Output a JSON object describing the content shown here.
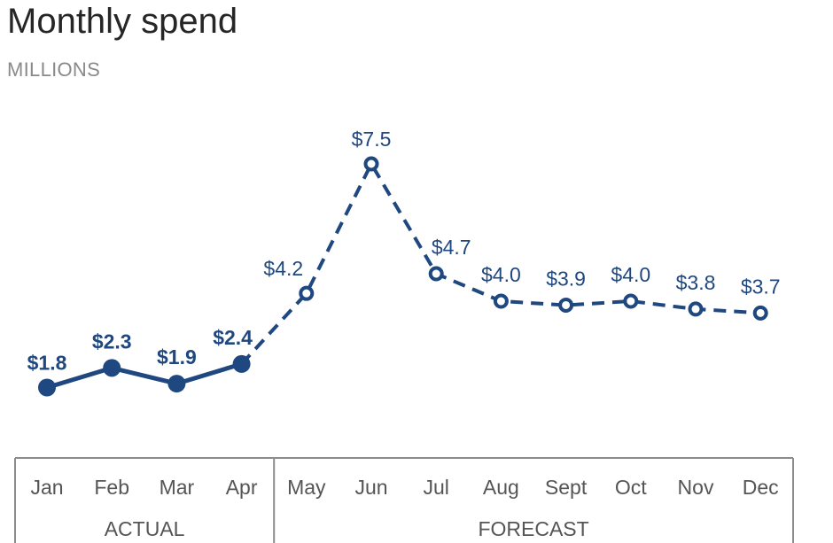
{
  "title": "Monthly spend",
  "subtitle": "MILLIONS",
  "colors": {
    "line": "#1f4780",
    "axis": "#8c8c8c",
    "text": "#555555"
  },
  "chart_data": {
    "type": "line",
    "title": "Monthly spend",
    "subtitle": "MILLIONS",
    "categories": [
      "Jan",
      "Feb",
      "Mar",
      "Apr",
      "May",
      "Jun",
      "Jul",
      "Aug",
      "Sept",
      "Oct",
      "Nov",
      "Dec"
    ],
    "series": [
      {
        "name": "ACTUAL",
        "style": "solid",
        "marker": "filled",
        "x": [
          "Jan",
          "Feb",
          "Mar",
          "Apr"
        ],
        "values": [
          1.8,
          2.3,
          1.9,
          2.4
        ]
      },
      {
        "name": "FORECAST",
        "style": "dashed",
        "marker": "hollow",
        "x": [
          "Apr",
          "May",
          "Jun",
          "Jul",
          "Aug",
          "Sept",
          "Oct",
          "Nov",
          "Dec"
        ],
        "values": [
          2.4,
          4.2,
          7.5,
          4.7,
          4.0,
          3.9,
          4.0,
          3.8,
          3.7
        ]
      }
    ],
    "data_labels": [
      "$1.8",
      "$2.3",
      "$1.9",
      "$2.4",
      "$4.2",
      "$7.5",
      "$4.7",
      "$4.0",
      "$3.9",
      "$4.0",
      "$3.8",
      "$3.7"
    ],
    "groups": [
      {
        "label": "ACTUAL",
        "categories": [
          "Jan",
          "Feb",
          "Mar",
          "Apr"
        ]
      },
      {
        "label": "FORECAST",
        "categories": [
          "May",
          "Jun",
          "Jul",
          "Aug",
          "Sept",
          "Oct",
          "Nov",
          "Dec"
        ]
      }
    ],
    "xlabel": "",
    "ylabel": "",
    "grid": false,
    "legend": "none"
  }
}
